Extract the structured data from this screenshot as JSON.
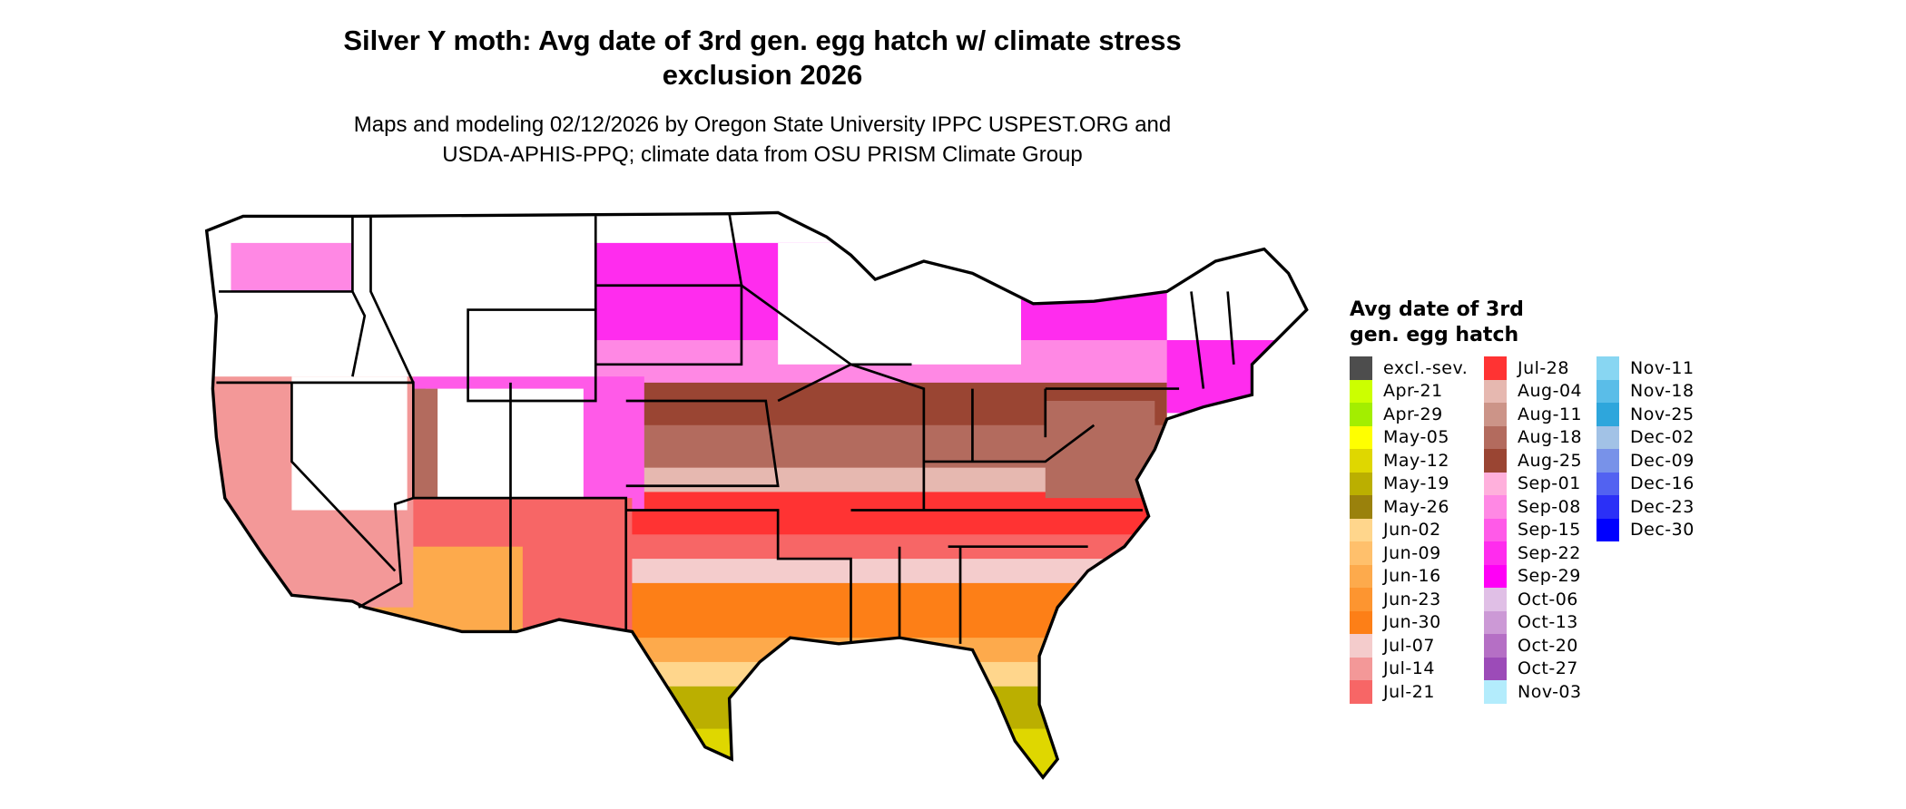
{
  "chart_data": {
    "type": "heatmap",
    "title": "Silver Y moth: Avg date of 3rd gen. egg hatch w/ climate stress exclusion 2026",
    "title_lines": [
      "Silver Y moth: Avg date of 3rd gen. egg hatch w/ climate stress",
      "exclusion 2026"
    ],
    "subtitle_lines": [
      "Maps and modeling 02/12/2026 by Oregon State University IPPC USPEST.ORG and",
      "USDA-APHIS-PPQ; climate data from OSU PRISM Climate Group"
    ],
    "legend": {
      "title_lines": [
        "Avg date of 3rd",
        "gen. egg hatch"
      ],
      "placement": "right",
      "columns": [
        [
          {
            "label": "excl.-sev.",
            "color": "#4d4d4d"
          },
          {
            "label": "Apr-21",
            "color": "#ccff00"
          },
          {
            "label": "Apr-29",
            "color": "#a3ee00"
          },
          {
            "label": "May-05",
            "color": "#ffff00"
          },
          {
            "label": "May-12",
            "color": "#dfd700"
          },
          {
            "label": "May-19",
            "color": "#bbaf00"
          },
          {
            "label": "May-26",
            "color": "#9a810c"
          },
          {
            "label": "Jun-02",
            "color": "#ffd68c"
          },
          {
            "label": "Jun-09",
            "color": "#ffc06c"
          },
          {
            "label": "Jun-16",
            "color": "#fdaa4c"
          },
          {
            "label": "Jun-23",
            "color": "#fd9530"
          },
          {
            "label": "Jun-30",
            "color": "#fd7f17"
          },
          {
            "label": "Jul-07",
            "color": "#f4cccc"
          },
          {
            "label": "Jul-14",
            "color": "#f39898"
          },
          {
            "label": "Jul-21",
            "color": "#f76666"
          }
        ],
        [
          {
            "label": "Jul-28",
            "color": "#ff3333"
          },
          {
            "label": "Aug-04",
            "color": "#e6b8b0"
          },
          {
            "label": "Aug-11",
            "color": "#cc9488"
          },
          {
            "label": "Aug-18",
            "color": "#b36b5e"
          },
          {
            "label": "Aug-25",
            "color": "#9a4533"
          },
          {
            "label": "Sep-01",
            "color": "#ffb0dc"
          },
          {
            "label": "Sep-08",
            "color": "#ff88e4"
          },
          {
            "label": "Sep-15",
            "color": "#ff5ae8"
          },
          {
            "label": "Sep-22",
            "color": "#ff2cee"
          },
          {
            "label": "Sep-29",
            "color": "#ff00f6"
          },
          {
            "label": "Oct-06",
            "color": "#e0bfe6"
          },
          {
            "label": "Oct-13",
            "color": "#cc99d6"
          },
          {
            "label": "Oct-20",
            "color": "#b56fc5"
          },
          {
            "label": "Oct-27",
            "color": "#9c4bb8"
          },
          {
            "label": "Nov-03",
            "color": "#b3ecfc"
          }
        ],
        [
          {
            "label": "Nov-11",
            "color": "#88d6f2"
          },
          {
            "label": "Nov-18",
            "color": "#5abde8"
          },
          {
            "label": "Nov-25",
            "color": "#2ea6dc"
          },
          {
            "label": "Dec-02",
            "color": "#a2c2e6"
          },
          {
            "label": "Dec-09",
            "color": "#7892e9"
          },
          {
            "label": "Dec-16",
            "color": "#5262f1"
          },
          {
            "label": "Dec-23",
            "color": "#2b30f7"
          },
          {
            "label": "Dec-30",
            "color": "#0000fe"
          }
        ]
      ]
    }
  }
}
